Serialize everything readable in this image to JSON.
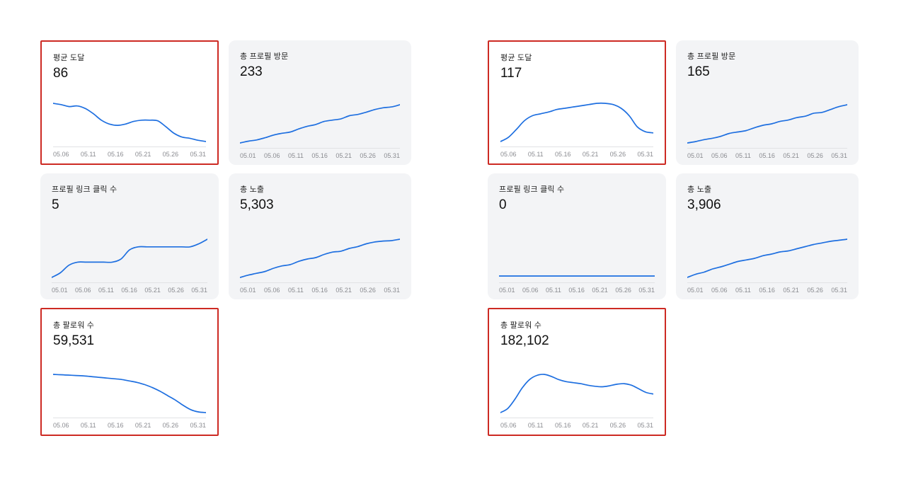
{
  "colors": {
    "line_blue": "#1e6fe0",
    "highlight_red": "#cd2a23",
    "card_bg": "#f3f4f6",
    "axis_gray": "#e1e2e5"
  },
  "groups": [
    {
      "name": "left-account",
      "cards": [
        {
          "title": "평균 도달",
          "value": "86",
          "highlighted": true
        },
        {
          "title": "총 프로필 방문",
          "value": "233",
          "highlighted": false
        },
        {
          "title": "프로필 링크 클릭 수",
          "value": "5",
          "highlighted": false
        },
        {
          "title": "총 노출",
          "value": "5,303",
          "highlighted": false
        },
        {
          "title": "총 팔로워 수",
          "value": "59,531",
          "highlighted": true
        }
      ]
    },
    {
      "name": "right-account",
      "cards": [
        {
          "title": "평균 도달",
          "value": "117",
          "highlighted": true
        },
        {
          "title": "총 프로필 방문",
          "value": "165",
          "highlighted": false
        },
        {
          "title": "프로필 링크 클릭 수",
          "value": "0",
          "highlighted": false
        },
        {
          "title": "총 노출",
          "value": "3,906",
          "highlighted": false
        },
        {
          "title": "총 팔로워 수",
          "value": "182,102",
          "highlighted": true
        }
      ]
    }
  ],
  "chart_data": [
    {
      "type": "line",
      "title": "평균 도달",
      "value": 86,
      "x_ticks": [
        "05.06",
        "05.11",
        "05.16",
        "05.21",
        "05.26",
        "05.31"
      ],
      "values": [
        92,
        90,
        87,
        88,
        84,
        76,
        66,
        60,
        58,
        60,
        64,
        66,
        66,
        65,
        56,
        46,
        40,
        38,
        35,
        33
      ],
      "trend": "declining"
    },
    {
      "type": "line",
      "title": "총 프로필 방문",
      "value": 233,
      "x_ticks": [
        "05.01",
        "05.06",
        "05.11",
        "05.16",
        "05.21",
        "05.26",
        "05.31"
      ],
      "values": [
        8,
        12,
        15,
        20,
        26,
        30,
        33,
        40,
        46,
        50,
        57,
        60,
        63,
        70,
        73,
        78,
        84,
        88,
        90,
        95
      ],
      "trend": "rising"
    },
    {
      "type": "line",
      "title": "프로필 링크 클릭 수",
      "value": 5,
      "x_ticks": [
        "05.01",
        "05.06",
        "05.11",
        "05.16",
        "05.21",
        "05.26",
        "05.31"
      ],
      "values": [
        0,
        0.6,
        1.6,
        2,
        2,
        2,
        2,
        2,
        2.4,
        3.6,
        4,
        4,
        4,
        4,
        4,
        4,
        4,
        4.4,
        5
      ],
      "trend": "stepped-rising"
    },
    {
      "type": "line",
      "title": "총 노출",
      "value": 5303,
      "x_ticks": [
        "05.01",
        "05.06",
        "05.11",
        "05.16",
        "05.21",
        "05.26",
        "05.31"
      ],
      "values": [
        5,
        10,
        14,
        18,
        25,
        30,
        33,
        40,
        45,
        48,
        55,
        60,
        62,
        68,
        72,
        78,
        82,
        84,
        85,
        88
      ],
      "trend": "rising"
    },
    {
      "type": "line",
      "title": "총 팔로워 수",
      "value": 59531,
      "x_ticks": [
        "05.06",
        "05.11",
        "05.16",
        "05.21",
        "05.26",
        "05.31"
      ],
      "values": [
        92,
        91.5,
        91,
        90.5,
        90,
        89,
        88,
        87,
        86,
        85,
        83,
        81,
        78,
        74,
        69,
        63,
        57,
        50,
        44,
        41,
        40
      ],
      "trend": "declining"
    },
    {
      "type": "line",
      "title": "평균 도달",
      "value": 117,
      "x_ticks": [
        "05.06",
        "05.11",
        "05.16",
        "05.21",
        "05.26",
        "05.31"
      ],
      "values": [
        18,
        25,
        38,
        52,
        60,
        63,
        66,
        70,
        72,
        74,
        76,
        78,
        80,
        80,
        78,
        72,
        60,
        42,
        34,
        32
      ],
      "trend": "rise-then-fall"
    },
    {
      "type": "line",
      "title": "총 프로필 방문",
      "value": 165,
      "x_ticks": [
        "05.01",
        "05.06",
        "05.11",
        "05.16",
        "05.21",
        "05.26",
        "05.31"
      ],
      "values": [
        10,
        13,
        17,
        20,
        24,
        30,
        33,
        36,
        42,
        47,
        50,
        55,
        58,
        63,
        66,
        72,
        74,
        80,
        86,
        90
      ],
      "trend": "rising"
    },
    {
      "type": "line",
      "title": "프로필 링크 클릭 수",
      "value": 0,
      "x_ticks": [
        "05.01",
        "05.06",
        "05.11",
        "05.16",
        "05.21",
        "05.26",
        "05.31"
      ],
      "values": [
        0,
        0,
        0,
        0,
        0,
        0,
        0,
        0,
        0,
        0,
        0,
        0,
        0,
        0,
        0,
        0,
        0,
        0,
        0,
        0
      ],
      "trend": "flat"
    },
    {
      "type": "line",
      "title": "총 노출",
      "value": 3906,
      "x_ticks": [
        "05.01",
        "05.06",
        "05.11",
        "05.16",
        "05.21",
        "05.26",
        "05.31"
      ],
      "values": [
        8,
        14,
        18,
        24,
        28,
        33,
        38,
        41,
        44,
        49,
        52,
        56,
        58,
        62,
        66,
        70,
        73,
        76,
        78,
        80
      ],
      "trend": "rising"
    },
    {
      "type": "line",
      "title": "총 팔로워 수",
      "value": 182102,
      "x_ticks": [
        "05.06",
        "05.11",
        "05.16",
        "05.21",
        "05.26",
        "05.31"
      ],
      "values": [
        14,
        22,
        40,
        62,
        78,
        86,
        88,
        84,
        78,
        74,
        72,
        70,
        67,
        65,
        64,
        66,
        69,
        70,
        67,
        60,
        53,
        50
      ],
      "trend": "spike-then-wavy-decline"
    }
  ]
}
